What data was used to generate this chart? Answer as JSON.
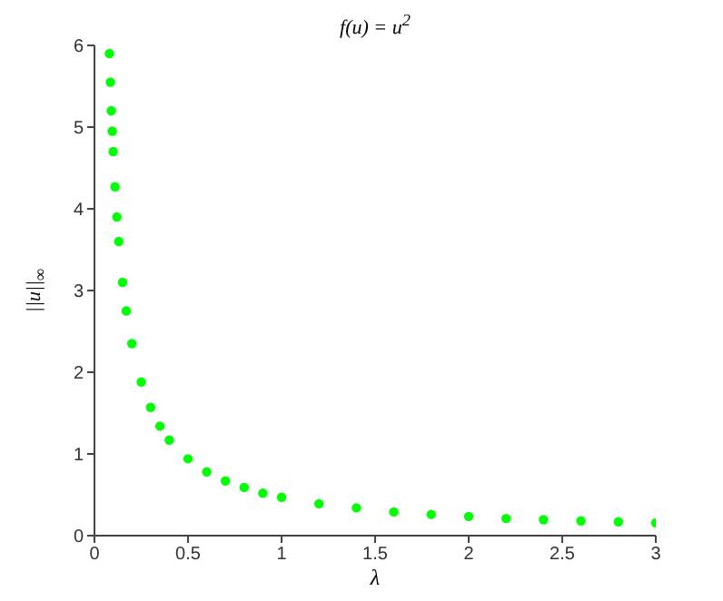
{
  "chart_data": {
    "type": "scatter",
    "title": "f(u) = u$^{2}$",
    "xlabel": "λ",
    "ylabel": "||u||$_{∞}$",
    "x": [
      0.08,
      0.085,
      0.09,
      0.095,
      0.1,
      0.11,
      0.12,
      0.13,
      0.15,
      0.17,
      0.2,
      0.25,
      0.3,
      0.35,
      0.4,
      0.5,
      0.6,
      0.7,
      0.8,
      0.9,
      1.0,
      1.2,
      1.4,
      1.6,
      1.8,
      2.0,
      2.2,
      2.4,
      2.6,
      2.8,
      3.0
    ],
    "series": [
      {
        "color": "#00ff00",
        "values": [
          5.9,
          5.55,
          5.2,
          4.95,
          4.7,
          4.27,
          3.9,
          3.6,
          3.1,
          2.75,
          2.35,
          1.88,
          1.57,
          1.34,
          1.17,
          0.94,
          0.78,
          0.67,
          0.59,
          0.52,
          0.47,
          0.39,
          0.34,
          0.29,
          0.26,
          0.235,
          0.21,
          0.195,
          0.18,
          0.17,
          0.155
        ]
      }
    ],
    "xlim": [
      0,
      3
    ],
    "xticks": [
      0,
      0.5,
      1,
      1.5,
      2,
      2.5,
      3
    ],
    "ylim": [
      0,
      6
    ],
    "yticks": [
      0,
      1,
      2,
      3,
      4,
      5,
      6
    ],
    "marker": "circle",
    "grid": false,
    "legend": false
  }
}
